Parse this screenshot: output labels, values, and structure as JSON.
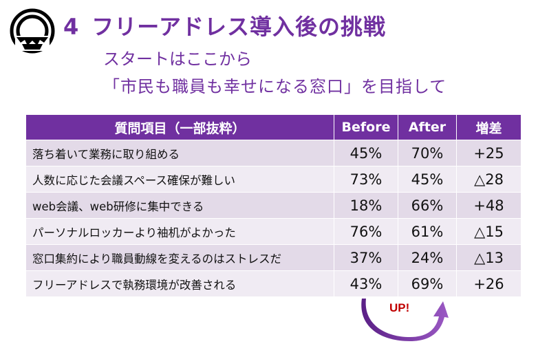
{
  "header": {
    "number": "4",
    "title": "フリーアドレス導入後の挑戦",
    "subtitle1": "スタートはここから",
    "subtitle2": "「市民も職員も幸せになる窓口」を目指して"
  },
  "table": {
    "columns": [
      "質問項目（一部抜粋）",
      "Before",
      "After",
      "増差"
    ],
    "rows": [
      {
        "item": "落ち着いて業務に取り組める",
        "before": "45%",
        "after": "70%",
        "diff": "+25"
      },
      {
        "item": "人数に応じた会議スペース確保が難しい",
        "before": "73%",
        "after": "45%",
        "diff": "△28"
      },
      {
        "item": "web会議、web研修に集中できる",
        "before": "18%",
        "after": "66%",
        "diff": "+48"
      },
      {
        "item": "パーソナルロッカーより袖机がよかった",
        "before": "76%",
        "after": "61%",
        "diff": "△15"
      },
      {
        "item": "窓口集約により職員動線を変えるのはストレスだ",
        "before": "37%",
        "after": "24%",
        "diff": "△13"
      },
      {
        "item": "フリーアドレスで執務環境が改善される",
        "before": "43%",
        "after": "69%",
        "diff": "+26"
      }
    ]
  },
  "annotation": {
    "label": "UP!"
  },
  "colors": {
    "accent": "#7030a0",
    "row_odd": "#e3dae8",
    "row_even": "#f0ebf3",
    "up_text": "#c00000"
  }
}
